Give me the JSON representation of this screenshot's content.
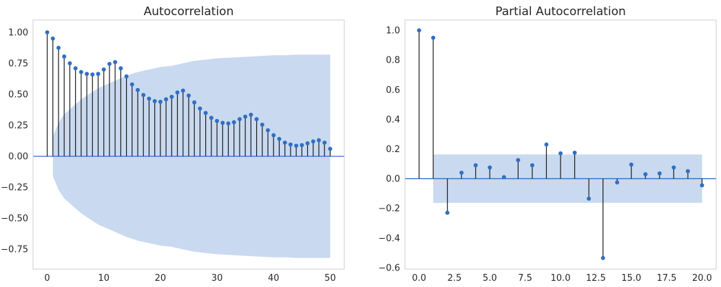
{
  "chart_data": [
    {
      "type": "stem",
      "title": "Autocorrelation",
      "xlabel": "",
      "ylabel": "",
      "xlim": [
        -2.5,
        52.5
      ],
      "ylim": [
        -0.91,
        1.1
      ],
      "xticks": [
        0,
        10,
        20,
        30,
        40,
        50
      ],
      "xtick_labels": [
        "0",
        "10",
        "20",
        "30",
        "40",
        "50"
      ],
      "yticks": [
        1.0,
        0.75,
        0.5,
        0.25,
        0.0,
        -0.25,
        -0.5,
        -0.75
      ],
      "ytick_labels": [
        "1.00",
        "0.75",
        "0.50",
        "0.25",
        "0.00",
        "−0.25",
        "−0.50",
        "−0.75"
      ],
      "grid": false,
      "x": [
        0,
        1,
        2,
        3,
        4,
        5,
        6,
        7,
        8,
        9,
        10,
        11,
        12,
        13,
        14,
        15,
        16,
        17,
        18,
        19,
        20,
        21,
        22,
        23,
        24,
        25,
        26,
        27,
        28,
        29,
        30,
        31,
        32,
        33,
        34,
        35,
        36,
        37,
        38,
        39,
        40,
        41,
        42,
        43,
        44,
        45,
        46,
        47,
        48,
        49,
        50
      ],
      "values": [
        1.0,
        0.95,
        0.875,
        0.805,
        0.75,
        0.71,
        0.68,
        0.665,
        0.66,
        0.665,
        0.7,
        0.745,
        0.76,
        0.71,
        0.645,
        0.58,
        0.535,
        0.495,
        0.465,
        0.445,
        0.44,
        0.46,
        0.48,
        0.515,
        0.53,
        0.49,
        0.435,
        0.385,
        0.35,
        0.31,
        0.285,
        0.27,
        0.265,
        0.275,
        0.3,
        0.32,
        0.335,
        0.3,
        0.255,
        0.21,
        0.17,
        0.14,
        0.11,
        0.095,
        0.085,
        0.09,
        0.105,
        0.12,
        0.13,
        0.11,
        0.06
      ],
      "confint_x": [
        1,
        2,
        3,
        4,
        5,
        6,
        7,
        8,
        9,
        10,
        12,
        14,
        16,
        18,
        20,
        22,
        24,
        26,
        28,
        30,
        32,
        34,
        36,
        38,
        40,
        42,
        44,
        46,
        48,
        50
      ],
      "confint_half_width": [
        0.16,
        0.27,
        0.34,
        0.38,
        0.42,
        0.46,
        0.49,
        0.52,
        0.55,
        0.57,
        0.61,
        0.65,
        0.68,
        0.7,
        0.72,
        0.73,
        0.75,
        0.77,
        0.78,
        0.79,
        0.795,
        0.8,
        0.805,
        0.81,
        0.815,
        0.815,
        0.82,
        0.82,
        0.82,
        0.82
      ]
    },
    {
      "type": "stem",
      "title": "Partial Autocorrelation",
      "xlabel": "",
      "ylabel": "",
      "xlim": [
        -1.0,
        21.0
      ],
      "ylim": [
        -0.61,
        1.07
      ],
      "xticks": [
        0,
        2.5,
        5,
        7.5,
        10,
        12.5,
        15,
        17.5,
        20
      ],
      "xtick_labels": [
        "0.0",
        "2.5",
        "5.0",
        "7.5",
        "10.0",
        "12.5",
        "15.0",
        "17.5",
        "20.0"
      ],
      "yticks": [
        1.0,
        0.8,
        0.6,
        0.4,
        0.2,
        0.0,
        -0.2,
        -0.4,
        -0.6
      ],
      "ytick_labels": [
        "1.0",
        "0.8",
        "0.6",
        "0.4",
        "0.2",
        "0.0",
        "−0.2",
        "−0.4",
        "−0.6"
      ],
      "grid": false,
      "x": [
        0,
        1,
        2,
        3,
        4,
        5,
        6,
        7,
        8,
        9,
        10,
        11,
        12,
        13,
        14,
        15,
        16,
        17,
        18,
        19,
        20
      ],
      "values": [
        1.0,
        0.95,
        -0.23,
        0.04,
        0.09,
        0.075,
        0.01,
        0.125,
        0.09,
        0.23,
        0.17,
        0.175,
        -0.135,
        -0.535,
        -0.025,
        0.095,
        0.03,
        0.035,
        0.075,
        0.05,
        -0.045
      ],
      "confint_x": [
        1,
        20
      ],
      "confint_half_width": [
        0.163,
        0.163
      ]
    }
  ],
  "colors": {
    "marker": "#2f6fc4",
    "stem": "#1a1a1a",
    "zero_line": "#2f6fc4",
    "confidence_band": "#c9d9ef",
    "frame": "#cccccc",
    "text": "#262626"
  }
}
